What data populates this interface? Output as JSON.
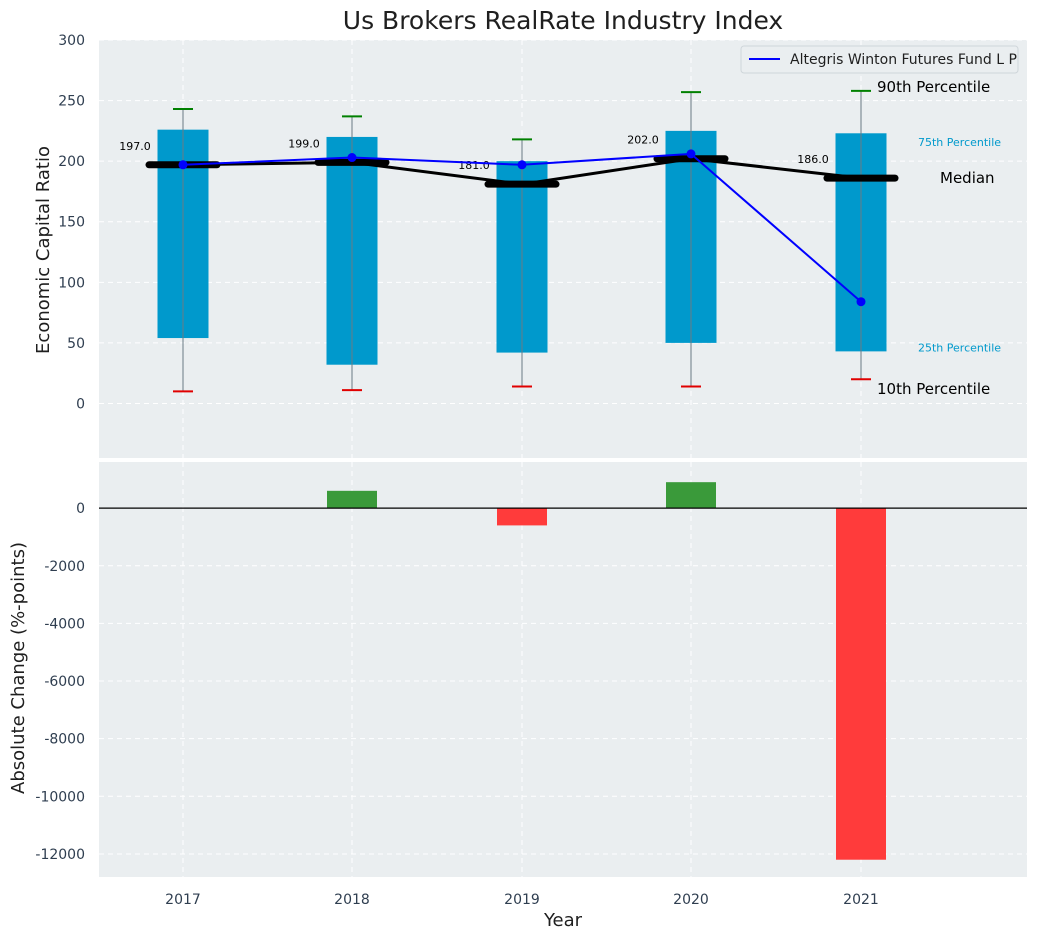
{
  "chart_data": {
    "type": "bar",
    "title": "Us Brokers RealRate Industry Index",
    "xlabel": "Year",
    "categories": [
      "2017",
      "2018",
      "2019",
      "2020",
      "2021"
    ],
    "top_panel": {
      "ylabel": "Economic Capital Ratio",
      "ylim": [
        -45,
        300
      ],
      "yticks": [
        "0",
        "50",
        "100",
        "150",
        "200",
        "250",
        "300"
      ],
      "grid": true,
      "percentile_25": [
        54,
        32,
        42,
        50,
        43
      ],
      "percentile_75": [
        226,
        220,
        200,
        225,
        223
      ],
      "percentile_10": [
        10,
        11,
        14,
        14,
        20
      ],
      "percentile_90": [
        243,
        237,
        218,
        257,
        258
      ],
      "median": [
        197,
        199,
        181,
        202,
        186
      ],
      "median_labels": [
        "197.0",
        "199.0",
        "181.0",
        "202.0",
        "186.0"
      ],
      "series": [
        {
          "name": "Altegris Winton Futures Fund L P",
          "values": [
            197,
            203,
            197,
            206,
            84
          ],
          "color": "#0000ff"
        }
      ],
      "legend_position": "top-right",
      "annotations": {
        "p90": "90th Percentile",
        "p75": "75th Percentile",
        "median": "Median",
        "p25": "25th Percentile",
        "p10": "10th Percentile"
      }
    },
    "bottom_panel": {
      "ylabel": "Absolute Change (%-points)",
      "ylim": [
        -12800,
        1600
      ],
      "yticks": [
        "0",
        "-2000",
        "-4000",
        "-6000",
        "-8000",
        "-10000",
        "-12000"
      ],
      "grid": true,
      "values": [
        null,
        600,
        -600,
        900,
        -12200
      ]
    },
    "colors": {
      "box": "#0099cc",
      "median_line": "#000000",
      "series_line": "#0000ff",
      "whisker_high": "#008000",
      "whisker_low": "#e00000",
      "positive_bar": "#3a9a3a",
      "negative_bar": "#ff3b3b",
      "panel_bg": "#eaeef0",
      "p_label": "#0099cc"
    }
  }
}
